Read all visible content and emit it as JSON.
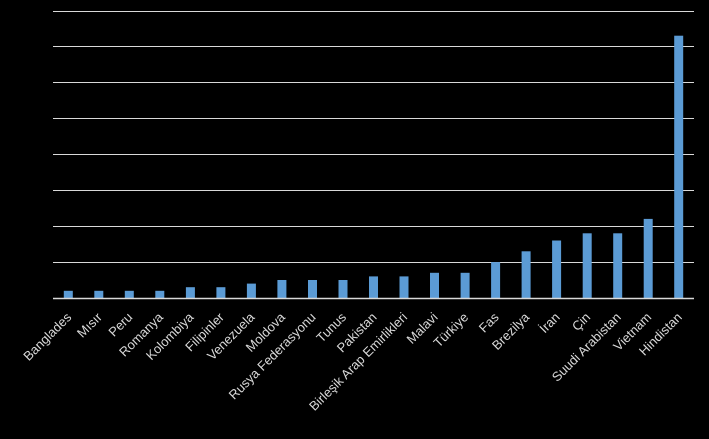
{
  "chart_data": {
    "type": "bar",
    "title": "",
    "xlabel": "",
    "ylabel": "",
    "ylim": [
      0,
      16
    ],
    "grid": true,
    "y_tick_labels_shown": false,
    "colors": {
      "background": "#000000",
      "bar": "#5b9bd5",
      "grid": "#d9d9d9",
      "text": "#d9d9d9"
    },
    "categories": [
      "Banglades",
      "Mısır",
      "Peru",
      "Romanya",
      "Kolombiya",
      "Filipinler",
      "Venezuela",
      "Moldova",
      "Rusya Federasyonu",
      "Tunus",
      "Pakistan",
      "Birleşik Arap Emirlikleri",
      "Malavi",
      "Türkiye",
      "Fas",
      "Brezilya",
      "İran",
      "Çin",
      "Suudi Arabistan",
      "Vietnam",
      "Hindistan"
    ],
    "values": [
      0.4,
      0.4,
      0.4,
      0.4,
      0.6,
      0.6,
      0.8,
      1.0,
      1.0,
      1.0,
      1.2,
      1.2,
      1.4,
      1.4,
      2.0,
      2.6,
      3.2,
      3.6,
      3.6,
      4.4,
      14.6
    ]
  }
}
